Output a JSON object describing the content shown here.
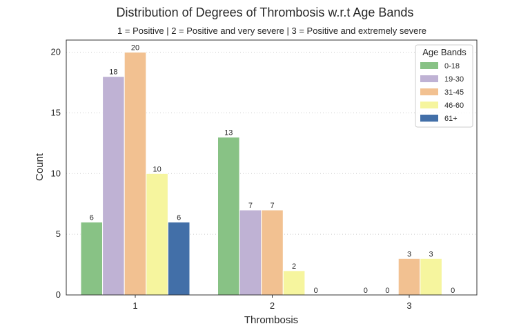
{
  "chart_data": {
    "type": "bar",
    "title": "Distribution of Degrees of Thrombosis w.r.t Age Bands",
    "subtitle": "1 = Positive | 2 = Positive and very severe | 3 = Positive and extremely severe",
    "xlabel": "Thrombosis",
    "ylabel": "Count",
    "categories": [
      "1",
      "2",
      "3"
    ],
    "ylim": [
      0,
      21
    ],
    "yticks": [
      0,
      5,
      10,
      15,
      20
    ],
    "grid": "horizontal dotted",
    "legend": {
      "title": "Age Bands",
      "placement": "top-right"
    },
    "series": [
      {
        "name": "0-18",
        "color": "#88c285",
        "values": [
          6,
          13,
          0
        ]
      },
      {
        "name": "19-30",
        "color": "#bfb2d4",
        "values": [
          18,
          7,
          0
        ]
      },
      {
        "name": "31-45",
        "color": "#f2c191",
        "values": [
          20,
          7,
          3
        ]
      },
      {
        "name": "46-60",
        "color": "#f6f59e",
        "values": [
          10,
          2,
          3
        ]
      },
      {
        "name": "61+",
        "color": "#426fa8",
        "values": [
          6,
          0,
          0
        ]
      }
    ]
  }
}
